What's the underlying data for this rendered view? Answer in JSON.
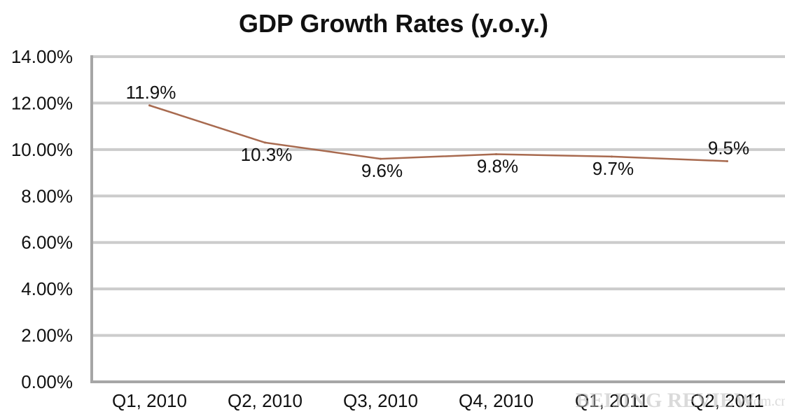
{
  "chart_data": {
    "type": "line",
    "title": "GDP Growth Rates (y.o.y.)",
    "xlabel": "",
    "ylabel": "",
    "categories": [
      "Q1, 2010",
      "Q2, 2010",
      "Q3, 2010",
      "Q4, 2010",
      "Q1, 2011",
      "Q2, 2011"
    ],
    "series": [
      {
        "values": [
          11.9,
          10.3,
          9.6,
          9.8,
          9.7,
          9.5
        ],
        "data_labels": [
          "11.9%",
          "10.3%",
          "9.6%",
          "9.8%",
          "9.7%",
          "9.5%"
        ],
        "color": "#a86a4f"
      }
    ],
    "ylim": [
      0,
      14
    ],
    "yticks": [
      "0.00%",
      "2.00%",
      "4.00%",
      "6.00%",
      "8.00%",
      "10.00%",
      "12.00%",
      "14.00%"
    ],
    "grid": true,
    "legend": "none",
    "colors": {
      "gridline": "#cccccc",
      "axis": "#a6a6a6",
      "line": "#a86a4f",
      "text": "#111111"
    }
  },
  "watermark": {
    "brand": "BEIJING REVIEW",
    "domain": ".com.cn"
  }
}
